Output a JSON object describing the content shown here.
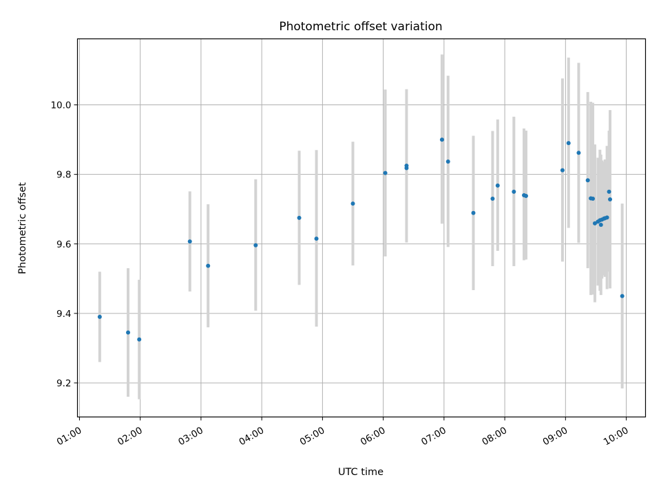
{
  "chart_data": {
    "type": "scatter",
    "title": "Photometric offset variation",
    "xlabel": "UTC time",
    "ylabel": "Photometric offset",
    "x_unit": "time of day (HH:MM)",
    "xlim": [
      "00:58",
      "10:19"
    ],
    "ylim": [
      9.102,
      10.19
    ],
    "grid": true,
    "x_ticks": [
      "01:00",
      "02:00",
      "03:00",
      "04:00",
      "05:00",
      "06:00",
      "07:00",
      "08:00",
      "09:00",
      "10:00"
    ],
    "y_ticks": [
      9.2,
      9.4,
      9.6,
      9.8,
      10.0
    ],
    "y_tick_labels": [
      "9.2",
      "9.4",
      "9.6",
      "9.8",
      "10.0"
    ],
    "colors": {
      "points": "#1f77b4",
      "errorbars": "#d3d3d3",
      "grid": "#b0b0b0"
    },
    "points": [
      {
        "x": "01:20",
        "y": 9.39,
        "ymin": 9.26,
        "ymax": 9.52
      },
      {
        "x": "01:48",
        "y": 9.345,
        "ymin": 9.16,
        "ymax": 9.53
      },
      {
        "x": "01:59",
        "y": 9.325,
        "ymin": 9.153,
        "ymax": 9.497
      },
      {
        "x": "02:49",
        "y": 9.607,
        "ymin": 9.463,
        "ymax": 9.751
      },
      {
        "x": "03:07",
        "y": 9.537,
        "ymin": 9.36,
        "ymax": 9.714
      },
      {
        "x": "03:54",
        "y": 9.596,
        "ymin": 9.408,
        "ymax": 9.786
      },
      {
        "x": "04:37",
        "y": 9.675,
        "ymin": 9.482,
        "ymax": 9.868
      },
      {
        "x": "04:54",
        "y": 9.615,
        "ymin": 9.362,
        "ymax": 9.87
      },
      {
        "x": "05:30",
        "y": 9.716,
        "ymin": 9.538,
        "ymax": 9.894
      },
      {
        "x": "06:02",
        "y": 9.804,
        "ymin": 9.564,
        "ymax": 10.044
      },
      {
        "x": "06:23",
        "y": 9.818,
        "ymin": 9.604,
        "ymax": 10.045
      },
      {
        "x": "06:23",
        "y": 9.825
      },
      {
        "x": "06:58",
        "y": 9.9,
        "ymin": 9.658,
        "ymax": 10.145
      },
      {
        "x": "07:04",
        "y": 9.837,
        "ymin": 9.591,
        "ymax": 10.084
      },
      {
        "x": "07:29",
        "y": 9.689,
        "ymin": 9.467,
        "ymax": 9.911
      },
      {
        "x": "07:48",
        "y": 9.73,
        "ymin": 9.536,
        "ymax": 9.925
      },
      {
        "x": "07:53",
        "y": 9.768,
        "ymin": 9.58,
        "ymax": 9.958
      },
      {
        "x": "08:09",
        "y": 9.75,
        "ymin": 9.536,
        "ymax": 9.966
      },
      {
        "x": "08:19",
        "y": 9.74,
        "ymin": 9.553,
        "ymax": 9.932
      },
      {
        "x": "08:21",
        "y": 9.738,
        "ymin": 9.555,
        "ymax": 9.926
      },
      {
        "x": "08:57",
        "y": 9.812,
        "ymin": 9.549,
        "ymax": 10.076
      },
      {
        "x": "09:03",
        "y": 9.89,
        "ymin": 9.646,
        "ymax": 10.136
      },
      {
        "x": "09:13",
        "y": 9.862,
        "ymin": 9.603,
        "ymax": 10.121
      },
      {
        "x": "09:22",
        "y": 9.783,
        "ymin": 9.53,
        "ymax": 10.037
      },
      {
        "x": "09:25",
        "y": 9.731,
        "ymin": 9.453,
        "ymax": 10.009
      },
      {
        "x": "09:27",
        "y": 9.73,
        "ymin": 9.454,
        "ymax": 10.006
      },
      {
        "x": "09:29",
        "y": 9.659,
        "ymin": 9.432,
        "ymax": 9.886
      },
      {
        "x": "09:32",
        "y": 9.664,
        "ymin": 9.48,
        "ymax": 9.848
      },
      {
        "x": "09:34",
        "y": 9.668,
        "ymin": 9.465,
        "ymax": 9.871
      },
      {
        "x": "09:35",
        "y": 9.655,
        "ymin": 9.453,
        "ymax": 9.857
      },
      {
        "x": "09:36",
        "y": 9.67,
        "ymin": 9.5,
        "ymax": 9.84
      },
      {
        "x": "09:38",
        "y": 9.673,
        "ymin": 9.51,
        "ymax": 9.836
      },
      {
        "x": "09:39",
        "y": 9.674,
        "ymin": 9.505,
        "ymax": 9.843
      },
      {
        "x": "09:41",
        "y": 9.676,
        "ymin": 9.47,
        "ymax": 9.882
      },
      {
        "x": "09:43",
        "y": 9.75,
        "ymin": 9.52,
        "ymax": 9.926
      },
      {
        "x": "09:44",
        "y": 9.728,
        "ymin": 9.472,
        "ymax": 9.985
      },
      {
        "x": "09:56",
        "y": 9.45,
        "ymin": 9.184,
        "ymax": 9.716
      }
    ]
  }
}
